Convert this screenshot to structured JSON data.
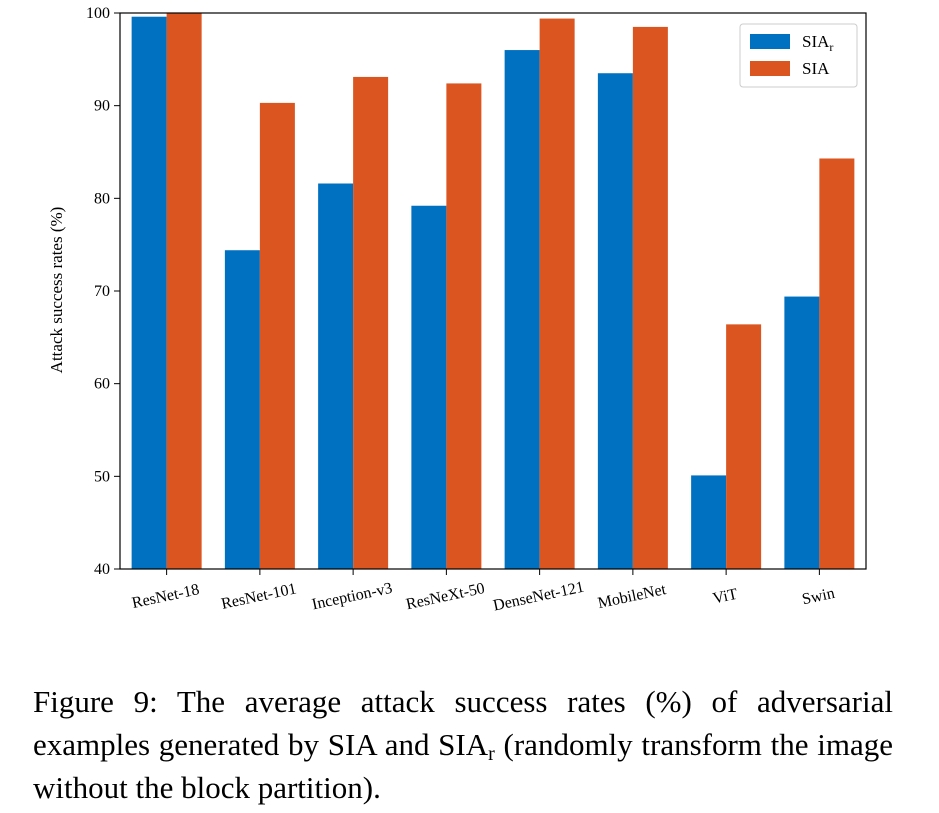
{
  "chart_data": {
    "type": "bar",
    "categories": [
      "ResNet-18",
      "ResNet-101",
      "Inception-v3",
      "ResNeXt-50",
      "DenseNet-121",
      "MobileNet",
      "ViT",
      "Swin"
    ],
    "series": [
      {
        "name": "SIA",
        "subscript": "r",
        "color": "#0070C0",
        "values": [
          99.6,
          74.4,
          81.6,
          79.2,
          96.0,
          93.5,
          50.1,
          69.4
        ]
      },
      {
        "name": "SIA",
        "subscript": "",
        "color": "#DA5520",
        "values": [
          100.0,
          90.3,
          93.1,
          92.4,
          99.4,
          98.5,
          66.4,
          84.3
        ]
      }
    ],
    "xlabel": "",
    "ylabel": "Attack success rates (%)",
    "ylim": [
      40,
      100
    ],
    "yticks": [
      "40",
      "50",
      "60",
      "70",
      "80",
      "90",
      "100"
    ],
    "grid": false,
    "legend_position": "upper-right"
  },
  "caption": {
    "prefix": "Figure 9: The average attack success rates (%) of adversarial examples generated by SIA and SIA",
    "sub": "r",
    "suffix": " (randomly transform the image without the block partition)."
  }
}
